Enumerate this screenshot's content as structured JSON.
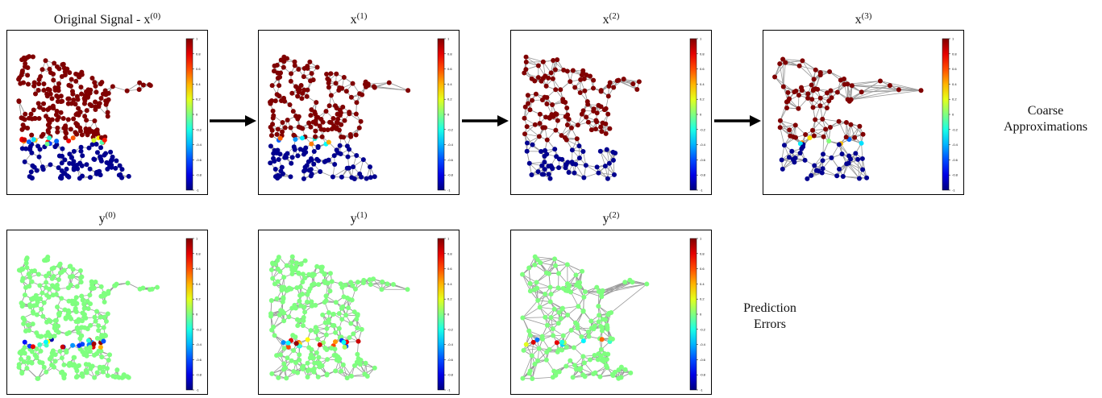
{
  "colors": {
    "dark_red": "#800000",
    "navy": "#00008f",
    "light_green": "#7fff7f",
    "edge_gray": "#999999",
    "arrow": "#000000"
  },
  "colorbar": {
    "ticks": [
      "1",
      "0.8",
      "0.6",
      "0.4",
      "0.2",
      "0",
      "-0.2",
      "-0.4",
      "-0.6",
      "-0.8",
      "-1"
    ],
    "colormap": "jet"
  },
  "rows": [
    {
      "panels": [
        {
          "title_base": "Original Signal - x",
          "title_sup": "(0)"
        },
        {
          "title_base": "x",
          "title_sup": "(1)"
        },
        {
          "title_base": "x",
          "title_sup": "(2)"
        },
        {
          "title_base": "x",
          "title_sup": "(3)"
        }
      ],
      "side_label": [
        "Coarse",
        "Approximations"
      ]
    },
    {
      "panels": [
        {
          "title_base": "y",
          "title_sup": "(0)"
        },
        {
          "title_base": "y",
          "title_sup": "(1)"
        },
        {
          "title_base": "y",
          "title_sup": "(2)"
        }
      ],
      "side_label": [
        "Prediction",
        "Errors"
      ]
    }
  ]
}
